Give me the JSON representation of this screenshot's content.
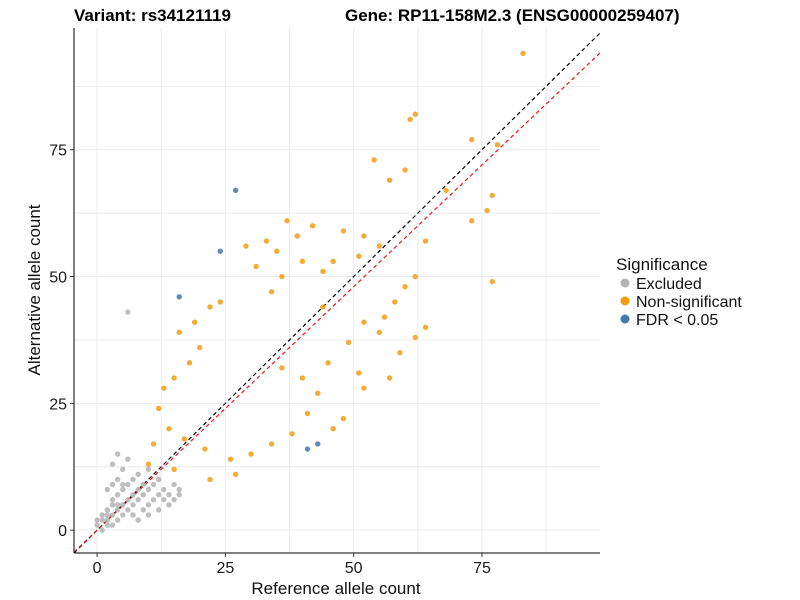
{
  "chart_data": {
    "type": "scatter",
    "title_left": "Variant: rs34121119",
    "title_right": "Gene: RP11-158M2.3 (ENSG00000259407)",
    "xlabel": "Reference allele count",
    "ylabel": "Alternative allele count",
    "xlim": [
      -4.5,
      98
    ],
    "ylim": [
      -4.5,
      99
    ],
    "xticks": [
      0,
      25,
      50,
      75
    ],
    "yticks": [
      0,
      25,
      50,
      75
    ],
    "grid": true,
    "legend": {
      "title": "Significance",
      "position": "right",
      "entries": [
        {
          "label": "Excluded",
          "color": "#b3b3b3"
        },
        {
          "label": "Non-significant",
          "color": "#f39c12"
        },
        {
          "label": "FDR < 0.05",
          "color": "#4477aa"
        }
      ]
    },
    "reference_lines": [
      {
        "name": "identity",
        "slope": 1.0,
        "intercept": 0,
        "color": "#000000",
        "style": "dashed"
      },
      {
        "name": "fit",
        "slope": 0.96,
        "intercept": 0,
        "color": "#e41a1c",
        "style": "dashed"
      }
    ],
    "series": [
      {
        "name": "Excluded",
        "color": "#b3b3b3",
        "points": [
          [
            0,
            1
          ],
          [
            0,
            2
          ],
          [
            1,
            0
          ],
          [
            1,
            2
          ],
          [
            1,
            3
          ],
          [
            2,
            1
          ],
          [
            2,
            2
          ],
          [
            2,
            3
          ],
          [
            2,
            4
          ],
          [
            3,
            1
          ],
          [
            3,
            3
          ],
          [
            3,
            5
          ],
          [
            3,
            6
          ],
          [
            4,
            2
          ],
          [
            4,
            4
          ],
          [
            4,
            5
          ],
          [
            4,
            7
          ],
          [
            5,
            3
          ],
          [
            5,
            5
          ],
          [
            5,
            8
          ],
          [
            5,
            9
          ],
          [
            6,
            4
          ],
          [
            6,
            6
          ],
          [
            6,
            9
          ],
          [
            6,
            43
          ],
          [
            7,
            3
          ],
          [
            7,
            5
          ],
          [
            7,
            7
          ],
          [
            7,
            10
          ],
          [
            8,
            2
          ],
          [
            8,
            6
          ],
          [
            8,
            8
          ],
          [
            8,
            11
          ],
          [
            9,
            4
          ],
          [
            9,
            7
          ],
          [
            9,
            9
          ],
          [
            10,
            3
          ],
          [
            10,
            5
          ],
          [
            10,
            8
          ],
          [
            10,
            12
          ],
          [
            11,
            6
          ],
          [
            11,
            9
          ],
          [
            12,
            4
          ],
          [
            12,
            7
          ],
          [
            12,
            10
          ],
          [
            13,
            6
          ],
          [
            13,
            8
          ],
          [
            14,
            5
          ],
          [
            14,
            7
          ],
          [
            15,
            6
          ],
          [
            15,
            9
          ],
          [
            16,
            7
          ],
          [
            16,
            8
          ],
          [
            3,
            13
          ],
          [
            4,
            15
          ],
          [
            5,
            12
          ],
          [
            2,
            8
          ],
          [
            3,
            9
          ],
          [
            4,
            10
          ],
          [
            6,
            14
          ]
        ]
      },
      {
        "name": "Non-significant",
        "color": "#f39c12",
        "points": [
          [
            83,
            94
          ],
          [
            62,
            82
          ],
          [
            61,
            81
          ],
          [
            73,
            77
          ],
          [
            78,
            76
          ],
          [
            54,
            73
          ],
          [
            60,
            71
          ],
          [
            68,
            67
          ],
          [
            57,
            69
          ],
          [
            77,
            66
          ],
          [
            76,
            63
          ],
          [
            37,
            61
          ],
          [
            73,
            61
          ],
          [
            42,
            60
          ],
          [
            48,
            59
          ],
          [
            52,
            58
          ],
          [
            39,
            58
          ],
          [
            64,
            57
          ],
          [
            33,
            57
          ],
          [
            77,
            49
          ],
          [
            62,
            50
          ],
          [
            60,
            48
          ],
          [
            46,
            53
          ],
          [
            51,
            54
          ],
          [
            55,
            56
          ],
          [
            44,
            51
          ],
          [
            35,
            55
          ],
          [
            40,
            53
          ],
          [
            58,
            45
          ],
          [
            56,
            42
          ],
          [
            62,
            38
          ],
          [
            59,
            35
          ],
          [
            64,
            40
          ],
          [
            29,
            56
          ],
          [
            31,
            52
          ],
          [
            36,
            50
          ],
          [
            34,
            47
          ],
          [
            44,
            44
          ],
          [
            52,
            41
          ],
          [
            55,
            39
          ],
          [
            49,
            37
          ],
          [
            45,
            33
          ],
          [
            51,
            31
          ],
          [
            16,
            39
          ],
          [
            19,
            41
          ],
          [
            22,
            44
          ],
          [
            24,
            45
          ],
          [
            20,
            36
          ],
          [
            18,
            33
          ],
          [
            15,
            30
          ],
          [
            13,
            28
          ],
          [
            12,
            24
          ],
          [
            14,
            20
          ],
          [
            17,
            18
          ],
          [
            21,
            16
          ],
          [
            26,
            14
          ],
          [
            30,
            15
          ],
          [
            34,
            17
          ],
          [
            38,
            19
          ],
          [
            41,
            23
          ],
          [
            43,
            27
          ],
          [
            40,
            30
          ],
          [
            36,
            32
          ],
          [
            11,
            17
          ],
          [
            10,
            13
          ],
          [
            15,
            12
          ],
          [
            22,
            10
          ],
          [
            27,
            11
          ],
          [
            48,
            22
          ],
          [
            46,
            20
          ],
          [
            52,
            28
          ],
          [
            57,
            30
          ]
        ]
      },
      {
        "name": "FDR < 0.05",
        "color": "#4477aa",
        "points": [
          [
            27,
            67
          ],
          [
            24,
            55
          ],
          [
            16,
            46
          ],
          [
            41,
            16
          ],
          [
            43,
            17
          ]
        ]
      }
    ]
  }
}
